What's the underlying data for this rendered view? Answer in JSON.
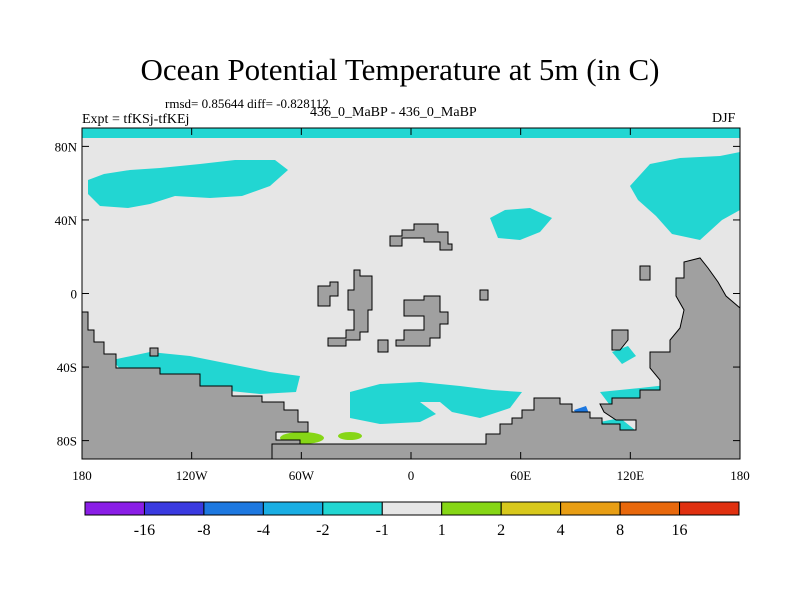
{
  "title": "Ocean Potential Temperature at 5m (in C)",
  "stats": "rmsd= 0.85644 diff= -0.828112",
  "expt_label": "Expt = tfKSj-tfKEj",
  "subtitle": "436_0_MaBP - 436_0_MaBP",
  "season": "DJF",
  "lat_ticks": [
    {
      "lat": 80,
      "label": "80N"
    },
    {
      "lat": 40,
      "label": "40N"
    },
    {
      "lat": 0,
      "label": "0"
    },
    {
      "lat": -40,
      "label": "40S"
    },
    {
      "lat": -80,
      "label": "80S"
    }
  ],
  "lon_ticks": [
    {
      "lon": -180,
      "label": "180"
    },
    {
      "lon": -120,
      "label": "120W"
    },
    {
      "lon": -60,
      "label": "60W"
    },
    {
      "lon": 0,
      "label": "0"
    },
    {
      "lon": 60,
      "label": "60E"
    },
    {
      "lon": 120,
      "label": "120E"
    },
    {
      "lon": 180,
      "label": "180"
    }
  ],
  "colorbar": {
    "colors": [
      "#8a1ee6",
      "#3a3ae0",
      "#1d78e0",
      "#1aaee3",
      "#22d6d2",
      "#e6e6e6",
      "#86d616",
      "#d8c81c",
      "#e89e14",
      "#e8680c",
      "#e03010"
    ],
    "labels": [
      "-16",
      "-8",
      "-4",
      "-2",
      "-1",
      "1",
      "2",
      "4",
      "8",
      "16"
    ]
  },
  "colors": {
    "background_field": "#e6e6e6",
    "land": "#a0a0a0",
    "cyan_band": "#22d6d2",
    "blue_band": "#1d78e0",
    "green_band": "#86d616"
  }
}
